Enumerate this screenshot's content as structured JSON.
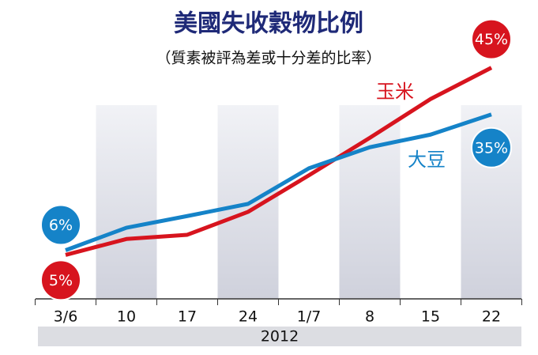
{
  "chart_data": {
    "type": "line",
    "title": "美國失收穀物比例",
    "subtitle": "（質素被評為差或十分差的比率）",
    "categories": [
      "3/6",
      "10",
      "17",
      "24",
      "1/7",
      "8",
      "15",
      "22"
    ],
    "year_label": "2012",
    "series": [
      {
        "name": "玉米",
        "color": "#d7141e",
        "values": [
          5,
          8.4,
          9.3,
          14.2,
          22,
          30,
          38.3,
          45
        ],
        "value_labels": [
          "5%",
          null,
          null,
          null,
          null,
          null,
          null,
          "45%"
        ]
      },
      {
        "name": "大豆",
        "color": "#1583c8",
        "values": [
          6,
          10.8,
          13.3,
          15.9,
          23.5,
          28,
          30.7,
          35
        ],
        "value_labels": [
          "6%",
          null,
          null,
          null,
          null,
          null,
          null,
          "35%"
        ]
      }
    ],
    "ylim": [
      0,
      50
    ]
  }
}
